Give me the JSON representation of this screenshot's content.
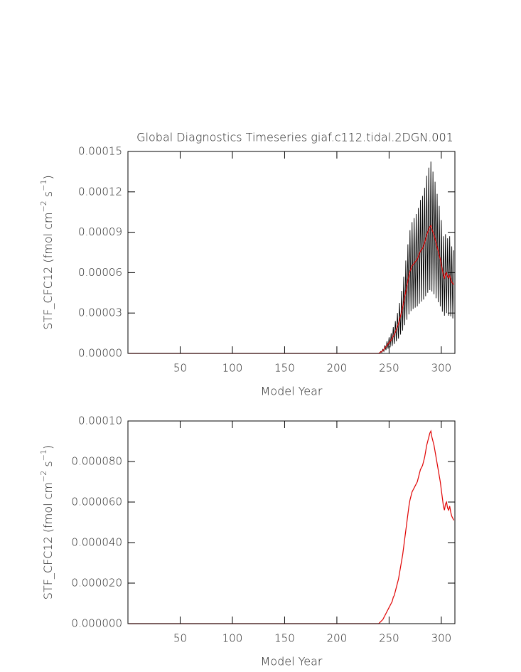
{
  "chart_data": [
    {
      "type": "line",
      "title": "Global Diagnostics Timeseries giaf.c112.tidal.2DGN.001",
      "xlabel": "Model Year",
      "ylabel": [
        "STF_CFC12 (fmol cm",
        "−2",
        " s",
        "−1",
        ")"
      ],
      "xlim": [
        0,
        313
      ],
      "xticks": [
        50,
        100,
        150,
        200,
        250,
        300
      ],
      "ylim": [
        0,
        0.00015
      ],
      "yticks": [
        {
          "value": 0,
          "label": "0.00000"
        },
        {
          "value": 3e-05,
          "label": "0.00003"
        },
        {
          "value": 6e-05,
          "label": "0.00006"
        },
        {
          "value": 9e-05,
          "label": "0.00009"
        },
        {
          "value": 0.00012,
          "label": "0.00012"
        },
        {
          "value": 0.00015,
          "label": "0.00015"
        }
      ],
      "x": [
        1,
        240,
        241,
        242,
        243,
        244,
        245,
        246,
        247,
        248,
        249,
        250,
        251,
        252,
        253,
        254,
        255,
        256,
        257,
        258,
        259,
        260,
        261,
        262,
        263,
        264,
        265,
        266,
        267,
        268,
        269,
        270,
        271,
        272,
        273,
        274,
        275,
        276,
        277,
        278,
        279,
        280,
        281,
        282,
        283,
        284,
        285,
        286,
        287,
        288,
        289,
        290,
        291,
        292,
        293,
        294,
        295,
        296,
        297,
        298,
        299,
        300,
        301,
        302,
        303,
        304,
        305,
        306,
        307,
        308,
        309,
        310,
        311,
        312
      ],
      "series": [
        {
          "color": "#000000",
          "values": [
            0,
            0,
            2.5e-07,
            1.5e-06,
            7.5e-07,
            3e-06,
            1.5e-06,
            6e-06,
            2.5e-06,
            9e-06,
            3.5e-06,
            1.2e-05,
            4.5e-06,
            1.5e-05,
            5.5e-06,
            1.95e-05,
            7e-06,
            2.4e-05,
            9e-06,
            3e-05,
            1.1e-05,
            3.75e-05,
            1.4e-05,
            4.65e-05,
            1.7e-05,
            5.7e-05,
            2.1e-05,
            6.9e-05,
            2.5e-05,
            8.1e-05,
            2.9e-05,
            9.15e-05,
            3.15e-05,
            9.75e-05,
            3.3e-05,
            0.0001005,
            3.4e-05,
            0.0001035,
            3.5e-05,
            0.000108,
            3.7e-05,
            0.000114,
            3.85e-05,
            0.000117,
            4e-05,
            0.000123,
            4.25e-05,
            0.000132,
            4.5e-05,
            0.000138,
            4.7e-05,
            0.0001425,
            4.6e-05,
            0.000135,
            4.4e-05,
            0.0001275,
            4.1e-05,
            0.0001185,
            3.8e-05,
            0.0001095,
            3.5e-05,
            9.9e-05,
            3.1e-05,
            8.7e-05,
            2.8e-05,
            8.85e-05,
            3e-05,
            8.55e-05,
            2.8e-05,
            8.7e-05,
            2.75e-05,
            7.95e-05,
            2.6e-05,
            7.65e-05
          ]
        },
        {
          "color": "#e00000",
          "values": [
            0,
            0,
            5e-07,
            1e-06,
            1.5e-06,
            2e-06,
            3e-06,
            4e-06,
            5e-06,
            6e-06,
            7e-06,
            8e-06,
            9e-06,
            1e-05,
            1.1e-05,
            1.3e-05,
            1.4e-05,
            1.6e-05,
            1.8e-05,
            2e-05,
            2.2e-05,
            2.5e-05,
            2.8e-05,
            3.1e-05,
            3.4e-05,
            3.8e-05,
            4.2e-05,
            4.6e-05,
            5e-05,
            5.4e-05,
            5.8e-05,
            6.1e-05,
            6.3e-05,
            6.5e-05,
            6.6e-05,
            6.7e-05,
            6.8e-05,
            6.9e-05,
            7e-05,
            7.2e-05,
            7.4e-05,
            7.6e-05,
            7.7e-05,
            7.8e-05,
            8e-05,
            8.2e-05,
            8.5e-05,
            8.8e-05,
            9e-05,
            9.2e-05,
            9.4e-05,
            9.5e-05,
            9.2e-05,
            9e-05,
            8.8e-05,
            8.5e-05,
            8.2e-05,
            7.9e-05,
            7.6e-05,
            7.3e-05,
            7e-05,
            6.6e-05,
            6.2e-05,
            5.8e-05,
            5.6e-05,
            5.9e-05,
            6e-05,
            5.7e-05,
            5.6e-05,
            5.8e-05,
            5.5e-05,
            5.3e-05,
            5.2e-05,
            5.1e-05
          ]
        }
      ]
    },
    {
      "type": "line",
      "xlabel": "Model Year",
      "ylabel": [
        "STF_CFC12 (fmol cm",
        "−2",
        " s",
        "−1",
        ")"
      ],
      "xlim": [
        0,
        313
      ],
      "xticks": [
        50,
        100,
        150,
        200,
        250,
        300
      ],
      "ylim": [
        0,
        0.0001
      ],
      "yticks": [
        {
          "value": 0,
          "label": "0.000000"
        },
        {
          "value": 2e-05,
          "label": "0.000020"
        },
        {
          "value": 4e-05,
          "label": "0.000040"
        },
        {
          "value": 6e-05,
          "label": "0.000060"
        },
        {
          "value": 8e-05,
          "label": "0.000080"
        },
        {
          "value": 0.0001,
          "label": "0.00010"
        }
      ],
      "x": [
        1,
        240,
        241,
        242,
        243,
        244,
        245,
        246,
        247,
        248,
        249,
        250,
        251,
        252,
        253,
        254,
        255,
        256,
        257,
        258,
        259,
        260,
        261,
        262,
        263,
        264,
        265,
        266,
        267,
        268,
        269,
        270,
        271,
        272,
        273,
        274,
        275,
        276,
        277,
        278,
        279,
        280,
        281,
        282,
        283,
        284,
        285,
        286,
        287,
        288,
        289,
        290,
        291,
        292,
        293,
        294,
        295,
        296,
        297,
        298,
        299,
        300,
        301,
        302,
        303,
        304,
        305,
        306,
        307,
        308,
        309,
        310,
        311,
        312
      ],
      "series": [
        {
          "color": "#e00000",
          "values": [
            0,
            0,
            5e-07,
            1e-06,
            1.5e-06,
            2e-06,
            3e-06,
            4e-06,
            5e-06,
            6e-06,
            7e-06,
            8e-06,
            9e-06,
            1e-05,
            1.1e-05,
            1.3e-05,
            1.4e-05,
            1.6e-05,
            1.8e-05,
            2e-05,
            2.2e-05,
            2.5e-05,
            2.8e-05,
            3.1e-05,
            3.4e-05,
            3.8e-05,
            4.2e-05,
            4.6e-05,
            5e-05,
            5.4e-05,
            5.8e-05,
            6.1e-05,
            6.3e-05,
            6.5e-05,
            6.6e-05,
            6.7e-05,
            6.8e-05,
            6.9e-05,
            7e-05,
            7.2e-05,
            7.4e-05,
            7.6e-05,
            7.7e-05,
            7.8e-05,
            8e-05,
            8.2e-05,
            8.5e-05,
            8.8e-05,
            9e-05,
            9.2e-05,
            9.4e-05,
            9.5e-05,
            9.2e-05,
            9e-05,
            8.8e-05,
            8.5e-05,
            8.2e-05,
            7.9e-05,
            7.6e-05,
            7.3e-05,
            7e-05,
            6.6e-05,
            6.2e-05,
            5.8e-05,
            5.6e-05,
            5.9e-05,
            6e-05,
            5.7e-05,
            5.6e-05,
            5.8e-05,
            5.5e-05,
            5.3e-05,
            5.2e-05,
            5.1e-05
          ]
        }
      ]
    }
  ]
}
